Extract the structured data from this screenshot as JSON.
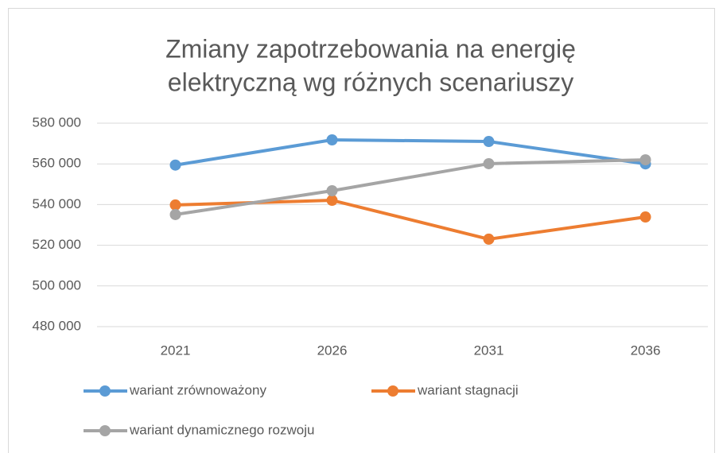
{
  "chart_data": {
    "type": "line",
    "title": [
      "Zmiany zapotrzebowania na energię",
      "elektryczną wg różnych scenariuszy"
    ],
    "categories": [
      "2021",
      "2026",
      "2031",
      "2036"
    ],
    "series": [
      {
        "name": "wariant zrównoważony",
        "color": "#5b9bd5",
        "values": [
          559400,
          571800,
          571000,
          560000
        ]
      },
      {
        "name": "wariant stagnacji",
        "color": "#ed7d31",
        "values": [
          539800,
          542100,
          523000,
          533900
        ]
      },
      {
        "name": "wariant dynamicznego rozwoju",
        "color": "#a5a5a5",
        "values": [
          535100,
          546800,
          560100,
          562000
        ]
      }
    ],
    "ylim": [
      480000,
      580000
    ],
    "yticks": [
      {
        "value": 480000,
        "label": "480 000"
      },
      {
        "value": 500000,
        "label": "500 000"
      },
      {
        "value": 520000,
        "label": "520 000"
      },
      {
        "value": 540000,
        "label": "540 000"
      },
      {
        "value": 560000,
        "label": "560 000"
      },
      {
        "value": 580000,
        "label": "580 000"
      }
    ],
    "grid": true,
    "legend": "bottom"
  }
}
